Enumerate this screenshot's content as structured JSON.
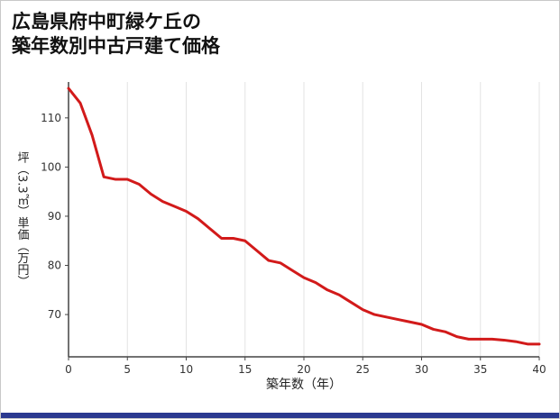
{
  "header": {
    "title_line1": "広島県府中町緑ケ丘の",
    "title_line2": "築年数別中古戸建て価格"
  },
  "colors": {
    "line": "#d21a1a",
    "grid": "#e3e3e3",
    "axis": "#444444",
    "tick_text": "#333333",
    "accent_bottom": "#2b3990"
  },
  "chart_data": {
    "type": "line",
    "title": "広島県府中町緑ケ丘の築年数別中古戸建て価格",
    "xlabel": "築年数（年）",
    "ylabel": "坪（3.3㎡）単価（万円）",
    "x": [
      0,
      1,
      2,
      3,
      4,
      5,
      6,
      7,
      8,
      9,
      10,
      11,
      12,
      13,
      14,
      15,
      16,
      17,
      18,
      19,
      20,
      21,
      22,
      23,
      24,
      25,
      26,
      27,
      28,
      29,
      30,
      31,
      32,
      33,
      34,
      35,
      36,
      37,
      38,
      39,
      40
    ],
    "values": [
      116,
      113,
      106.5,
      98,
      97.5,
      97.5,
      96.5,
      94.5,
      93,
      92,
      91,
      89.5,
      87.5,
      85.5,
      85.5,
      85,
      83,
      81,
      80.5,
      79,
      77.5,
      76.5,
      75,
      74,
      72.5,
      71,
      70,
      69.5,
      69,
      68.5,
      68,
      67,
      66.5,
      65.5,
      65,
      65,
      65,
      64.8,
      64.5,
      64,
      64
    ],
    "xlim": [
      0,
      40
    ],
    "ylim": [
      61.4,
      117.3
    ],
    "xticks": [
      0,
      5,
      10,
      15,
      20,
      25,
      30,
      35,
      40
    ],
    "yticks": [
      70,
      80,
      90,
      100,
      110
    ],
    "grid": "vertical",
    "legend": "none",
    "line_color": "#d21a1a"
  }
}
